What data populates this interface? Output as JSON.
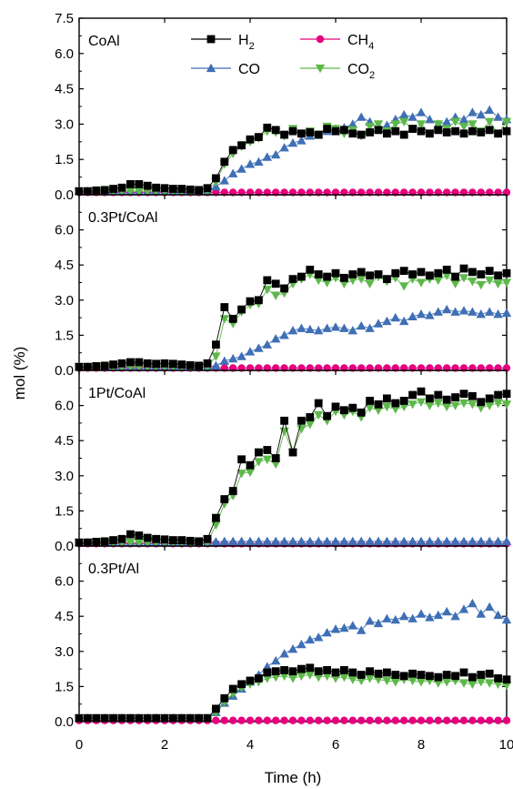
{
  "chart_data": {
    "type": "line",
    "xlabel": "Time (h)",
    "ylabel": "mol (%)",
    "xlim": [
      0,
      10
    ],
    "x_ticks": [
      "0",
      "2",
      "4",
      "6",
      "8",
      "10"
    ],
    "ylim": [
      0,
      7.5
    ],
    "y_ticks_top": [
      "0.0",
      "1.5",
      "3.0",
      "4.5",
      "6.0",
      "7.5"
    ],
    "y_ticks_other": [
      "0.0",
      "1.5",
      "3.0",
      "4.5",
      "6.0"
    ],
    "colors": {
      "H2": "#000000",
      "CH4": "#e6007e",
      "CO": "#3f6fb5",
      "CO2": "#5db84a"
    },
    "legend": [
      {
        "key": "H2",
        "label_main": "H",
        "label_sub": "2",
        "marker": "square"
      },
      {
        "key": "CH4",
        "label_main": "CH",
        "label_sub": "4",
        "marker": "circle"
      },
      {
        "key": "CO",
        "label_main": "CO",
        "label_sub": "",
        "marker": "triangle-up"
      },
      {
        "key": "CO2",
        "label_main": "CO",
        "label_sub": "2",
        "marker": "triangle-down"
      }
    ],
    "x": [
      0,
      0.2,
      0.4,
      0.6,
      0.8,
      1.0,
      1.2,
      1.4,
      1.6,
      1.8,
      2.0,
      2.2,
      2.4,
      2.6,
      2.8,
      3.0,
      3.2,
      3.4,
      3.6,
      3.8,
      4.0,
      4.2,
      4.4,
      4.6,
      4.8,
      5.0,
      5.2,
      5.4,
      5.6,
      5.8,
      6.0,
      6.2,
      6.4,
      6.6,
      6.8,
      7.0,
      7.2,
      7.4,
      7.6,
      7.8,
      8.0,
      8.2,
      8.4,
      8.6,
      8.8,
      9.0,
      9.2,
      9.4,
      9.6,
      9.8,
      10.0
    ],
    "panels": [
      {
        "title": "CoAl",
        "series": [
          {
            "name": "H2",
            "values": [
              0.15,
              0.15,
              0.18,
              0.2,
              0.25,
              0.3,
              0.45,
              0.45,
              0.38,
              0.3,
              0.28,
              0.25,
              0.25,
              0.22,
              0.2,
              0.28,
              0.7,
              1.4,
              1.9,
              2.1,
              2.35,
              2.45,
              2.85,
              2.75,
              2.55,
              2.7,
              2.6,
              2.65,
              2.55,
              2.8,
              2.7,
              2.75,
              2.6,
              2.55,
              2.65,
              2.75,
              2.6,
              2.7,
              2.55,
              2.8,
              2.7,
              2.6,
              2.75,
              2.65,
              2.7,
              2.6,
              2.7,
              2.65,
              2.75,
              2.6,
              2.7
            ]
          },
          {
            "name": "CH4",
            "values": [
              0.1,
              0.1,
              0.1,
              0.1,
              0.1,
              0.1,
              0.1,
              0.1,
              0.1,
              0.1,
              0.1,
              0.1,
              0.1,
              0.1,
              0.1,
              0.1,
              0.1,
              0.1,
              0.1,
              0.1,
              0.1,
              0.1,
              0.1,
              0.1,
              0.1,
              0.1,
              0.1,
              0.1,
              0.1,
              0.1,
              0.1,
              0.1,
              0.1,
              0.1,
              0.1,
              0.1,
              0.1,
              0.1,
              0.1,
              0.1,
              0.1,
              0.1,
              0.1,
              0.1,
              0.1,
              0.1,
              0.1,
              0.1,
              0.1,
              0.1,
              0.1
            ]
          },
          {
            "name": "CO",
            "values": [
              0.15,
              0.15,
              0.15,
              0.15,
              0.15,
              0.15,
              0.15,
              0.15,
              0.15,
              0.15,
              0.15,
              0.15,
              0.15,
              0.15,
              0.15,
              0.15,
              0.35,
              0.6,
              0.9,
              1.1,
              1.3,
              1.4,
              1.6,
              1.7,
              2.0,
              2.2,
              2.3,
              2.5,
              2.55,
              2.7,
              2.8,
              2.85,
              3.0,
              3.3,
              3.1,
              2.8,
              2.95,
              3.2,
              3.4,
              3.3,
              3.5,
              3.2,
              3.0,
              3.1,
              3.3,
              3.2,
              3.5,
              3.4,
              3.6,
              3.3,
              3.2
            ]
          },
          {
            "name": "CO2",
            "values": [
              0.15,
              0.15,
              0.15,
              0.15,
              0.15,
              0.15,
              0.15,
              0.15,
              0.15,
              0.15,
              0.15,
              0.15,
              0.15,
              0.15,
              0.15,
              0.15,
              0.55,
              1.3,
              1.75,
              2.05,
              2.25,
              2.4,
              2.7,
              2.65,
              2.5,
              2.8,
              2.6,
              2.7,
              2.55,
              2.9,
              2.8,
              2.6,
              2.75,
              2.5,
              2.9,
              3.0,
              2.7,
              3.0,
              3.1,
              2.8,
              3.0,
              2.6,
              3.0,
              2.8,
              3.1,
              2.9,
              3.0,
              2.7,
              3.1,
              2.6,
              3.1
            ]
          }
        ]
      },
      {
        "title": "0.3Pt/CoAl",
        "series": [
          {
            "name": "H2",
            "values": [
              0.15,
              0.15,
              0.18,
              0.2,
              0.25,
              0.3,
              0.35,
              0.35,
              0.3,
              0.28,
              0.3,
              0.28,
              0.25,
              0.22,
              0.2,
              0.3,
              1.1,
              2.7,
              2.2,
              2.6,
              2.95,
              3.0,
              3.85,
              3.7,
              3.5,
              3.9,
              4.0,
              4.3,
              4.1,
              4.0,
              4.15,
              3.95,
              4.1,
              4.2,
              4.05,
              4.1,
              3.9,
              4.15,
              4.25,
              4.1,
              4.2,
              4.05,
              4.15,
              4.3,
              4.0,
              4.35,
              4.2,
              4.1,
              4.25,
              4.05,
              4.15
            ]
          },
          {
            "name": "CH4",
            "values": [
              0.1,
              0.1,
              0.1,
              0.1,
              0.1,
              0.1,
              0.1,
              0.1,
              0.1,
              0.1,
              0.1,
              0.1,
              0.1,
              0.1,
              0.1,
              0.1,
              0.1,
              0.1,
              0.1,
              0.1,
              0.1,
              0.1,
              0.1,
              0.1,
              0.1,
              0.1,
              0.1,
              0.1,
              0.1,
              0.1,
              0.1,
              0.1,
              0.1,
              0.1,
              0.1,
              0.1,
              0.1,
              0.1,
              0.1,
              0.1,
              0.1,
              0.1,
              0.1,
              0.1,
              0.1,
              0.1,
              0.1,
              0.1,
              0.1,
              0.1,
              0.1
            ]
          },
          {
            "name": "CO",
            "values": [
              0.15,
              0.15,
              0.15,
              0.15,
              0.15,
              0.15,
              0.15,
              0.15,
              0.15,
              0.15,
              0.15,
              0.15,
              0.15,
              0.15,
              0.15,
              0.15,
              0.2,
              0.4,
              0.5,
              0.6,
              0.8,
              0.95,
              1.1,
              1.35,
              1.5,
              1.7,
              1.8,
              1.75,
              1.7,
              1.8,
              1.85,
              1.8,
              1.7,
              1.9,
              1.8,
              2.0,
              2.1,
              2.25,
              2.1,
              2.3,
              2.4,
              2.35,
              2.5,
              2.6,
              2.5,
              2.55,
              2.5,
              2.4,
              2.5,
              2.4,
              2.45
            ]
          },
          {
            "name": "CO2",
            "values": [
              0.15,
              0.15,
              0.15,
              0.15,
              0.15,
              0.15,
              0.15,
              0.15,
              0.15,
              0.15,
              0.15,
              0.15,
              0.15,
              0.15,
              0.15,
              0.15,
              0.6,
              2.2,
              2.0,
              2.5,
              2.8,
              2.85,
              3.45,
              3.2,
              3.3,
              3.7,
              3.9,
              4.1,
              3.85,
              3.75,
              3.95,
              3.7,
              3.85,
              3.9,
              3.7,
              4.0,
              3.8,
              3.95,
              3.6,
              3.9,
              3.75,
              3.9,
              3.85,
              4.05,
              3.7,
              3.95,
              3.8,
              3.65,
              3.85,
              3.7,
              3.75
            ]
          }
        ]
      },
      {
        "title": "1Pt/CoAl",
        "series": [
          {
            "name": "H2",
            "values": [
              0.15,
              0.15,
              0.18,
              0.2,
              0.25,
              0.3,
              0.5,
              0.45,
              0.35,
              0.3,
              0.28,
              0.25,
              0.25,
              0.22,
              0.2,
              0.3,
              1.2,
              2.0,
              2.35,
              3.7,
              3.45,
              4.0,
              4.1,
              3.75,
              5.35,
              4.0,
              5.35,
              5.5,
              6.1,
              5.55,
              5.95,
              5.8,
              5.9,
              5.7,
              6.2,
              6.05,
              6.3,
              6.1,
              6.2,
              6.45,
              6.6,
              6.3,
              6.45,
              6.25,
              6.35,
              6.5,
              6.4,
              6.15,
              6.3,
              6.45,
              6.5
            ]
          },
          {
            "name": "CH4",
            "values": [
              0.1,
              0.1,
              0.1,
              0.1,
              0.1,
              0.1,
              0.1,
              0.1,
              0.1,
              0.1,
              0.1,
              0.1,
              0.1,
              0.1,
              0.1,
              0.1,
              0.1,
              0.1,
              0.1,
              0.1,
              0.1,
              0.1,
              0.1,
              0.1,
              0.1,
              0.1,
              0.1,
              0.1,
              0.1,
              0.1,
              0.1,
              0.1,
              0.1,
              0.1,
              0.1,
              0.1,
              0.1,
              0.1,
              0.1,
              0.1,
              0.1,
              0.1,
              0.1,
              0.1,
              0.1,
              0.1,
              0.1,
              0.1,
              0.1,
              0.1,
              0.1
            ]
          },
          {
            "name": "CO",
            "values": [
              0.15,
              0.15,
              0.15,
              0.15,
              0.15,
              0.15,
              0.15,
              0.15,
              0.15,
              0.15,
              0.15,
              0.15,
              0.15,
              0.15,
              0.15,
              0.15,
              0.18,
              0.2,
              0.2,
              0.2,
              0.2,
              0.2,
              0.2,
              0.2,
              0.2,
              0.2,
              0.2,
              0.2,
              0.2,
              0.2,
              0.2,
              0.2,
              0.2,
              0.2,
              0.2,
              0.2,
              0.2,
              0.2,
              0.2,
              0.2,
              0.2,
              0.2,
              0.2,
              0.2,
              0.2,
              0.2,
              0.2,
              0.2,
              0.2,
              0.2,
              0.2
            ]
          },
          {
            "name": "CO2",
            "values": [
              0.15,
              0.15,
              0.15,
              0.15,
              0.15,
              0.15,
              0.15,
              0.15,
              0.15,
              0.15,
              0.15,
              0.15,
              0.15,
              0.15,
              0.15,
              0.15,
              0.9,
              1.8,
              2.15,
              3.1,
              3.15,
              3.6,
              3.7,
              3.5,
              4.9,
              4.0,
              5.0,
              5.2,
              5.6,
              5.35,
              5.75,
              5.6,
              5.75,
              5.5,
              5.9,
              5.8,
              5.95,
              5.85,
              5.95,
              6.05,
              6.15,
              6.0,
              6.1,
              5.95,
              6.0,
              6.1,
              6.05,
              5.9,
              6.0,
              6.1,
              6.05
            ]
          }
        ]
      },
      {
        "title": "0.3Pt/Al",
        "series": [
          {
            "name": "H2",
            "values": [
              0.15,
              0.15,
              0.15,
              0.15,
              0.15,
              0.15,
              0.15,
              0.15,
              0.15,
              0.15,
              0.15,
              0.15,
              0.15,
              0.15,
              0.15,
              0.15,
              0.55,
              1.0,
              1.4,
              1.6,
              1.75,
              1.85,
              2.1,
              2.15,
              2.2,
              2.15,
              2.25,
              2.3,
              2.15,
              2.2,
              2.1,
              2.2,
              2.1,
              2.0,
              2.15,
              2.05,
              2.1,
              2.0,
              1.95,
              2.05,
              2.0,
              1.95,
              1.9,
              2.0,
              1.95,
              2.1,
              1.9,
              2.0,
              2.05,
              1.85,
              1.8
            ]
          },
          {
            "name": "CH4",
            "values": [
              0.05,
              0.05,
              0.05,
              0.05,
              0.05,
              0.05,
              0.05,
              0.05,
              0.05,
              0.05,
              0.05,
              0.05,
              0.05,
              0.05,
              0.05,
              0.05,
              0.05,
              0.05,
              0.05,
              0.05,
              0.05,
              0.05,
              0.05,
              0.05,
              0.05,
              0.05,
              0.05,
              0.05,
              0.05,
              0.05,
              0.05,
              0.05,
              0.05,
              0.05,
              0.05,
              0.05,
              0.05,
              0.05,
              0.05,
              0.05,
              0.05,
              0.05,
              0.05,
              0.05,
              0.05,
              0.05,
              0.05,
              0.05,
              0.05,
              0.05,
              0.05
            ]
          },
          {
            "name": "CO",
            "values": [
              0.15,
              0.15,
              0.15,
              0.15,
              0.15,
              0.15,
              0.15,
              0.15,
              0.15,
              0.15,
              0.15,
              0.15,
              0.15,
              0.15,
              0.15,
              0.15,
              0.4,
              0.8,
              1.1,
              1.4,
              1.7,
              2.0,
              2.35,
              2.6,
              2.9,
              3.1,
              3.3,
              3.5,
              3.6,
              3.8,
              3.95,
              4.0,
              4.1,
              3.9,
              4.3,
              4.2,
              4.4,
              4.35,
              4.5,
              4.4,
              4.6,
              4.45,
              4.55,
              4.7,
              4.5,
              4.8,
              5.05,
              4.6,
              4.9,
              4.55,
              4.35
            ]
          },
          {
            "name": "CO2",
            "values": [
              0.15,
              0.15,
              0.15,
              0.15,
              0.15,
              0.15,
              0.15,
              0.15,
              0.15,
              0.15,
              0.15,
              0.15,
              0.15,
              0.15,
              0.15,
              0.15,
              0.4,
              0.85,
              1.2,
              1.45,
              1.6,
              1.7,
              1.85,
              1.9,
              1.95,
              1.85,
              1.95,
              2.0,
              1.9,
              1.95,
              1.85,
              1.9,
              1.8,
              1.75,
              1.85,
              1.8,
              1.75,
              1.7,
              1.8,
              1.75,
              1.7,
              1.75,
              1.65,
              1.7,
              1.75,
              1.65,
              1.6,
              1.7,
              1.65,
              1.6,
              1.55
            ]
          }
        ]
      }
    ]
  }
}
